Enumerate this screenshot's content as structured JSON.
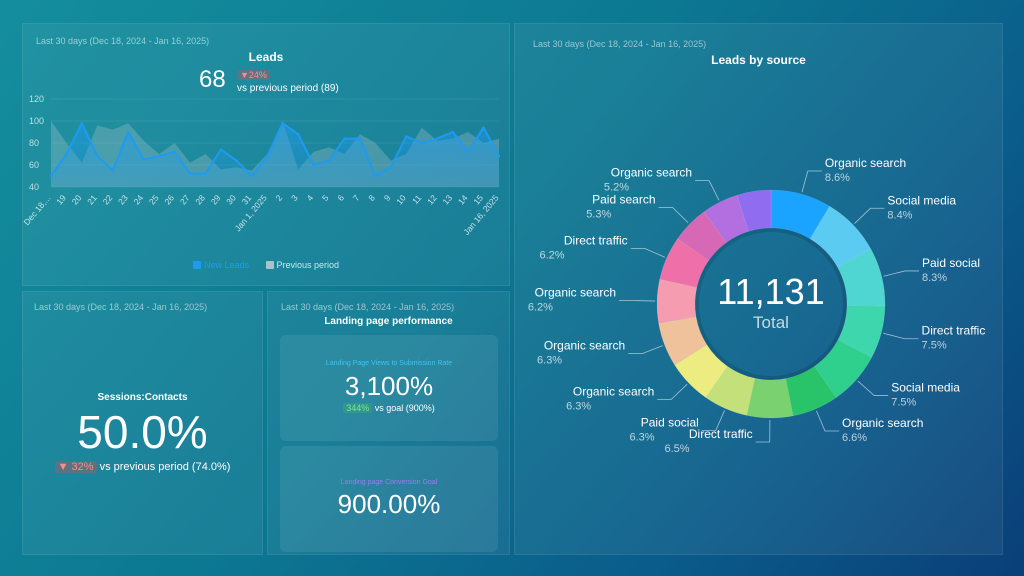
{
  "leads": {
    "period": "Last 30 days (Dec 18, 2024 - Jan 16, 2025)",
    "title": "Leads",
    "value": "68",
    "delta": "▼24%",
    "compare": "vs previous period (89)",
    "legend_new": "New Leads",
    "legend_prev": "Previous period"
  },
  "sessions": {
    "period": "Last 30 days (Dec 18, 2024 - Jan 16, 2025)",
    "title": "Sessions:Contacts",
    "value": "50.0%",
    "delta": "▼ 32%",
    "compare": "vs previous period (74.0%)"
  },
  "landing": {
    "period": "Last 30 days (Dec 18, 2024 - Jan 16, 2025)",
    "title": "Landing page performance",
    "tile1_label": "Landing Page Views to Submission Rate",
    "tile1_value": "3,100%",
    "tile1_delta": "344%",
    "tile1_compare": "vs goal (900%)",
    "tile2_label": "Landing page Conversion Goal",
    "tile2_value": "900.00%"
  },
  "source": {
    "period": "Last 30 days (Dec 18, 2024 - Jan 16, 2025)",
    "title": "Leads by source",
    "total_value": "11,131",
    "total_label": "Total"
  },
  "chart_data": [
    {
      "type": "area",
      "title": "Leads",
      "ylim": [
        40,
        120
      ],
      "yticks": [
        40,
        60,
        80,
        100,
        120
      ],
      "categories": [
        "Dec 18,...",
        "19",
        "20",
        "21",
        "22",
        "23",
        "24",
        "25",
        "26",
        "27",
        "28",
        "29",
        "30",
        "31",
        "Jan 1, 2025",
        "2",
        "3",
        "4",
        "5",
        "6",
        "7",
        "8",
        "9",
        "10",
        "11",
        "12",
        "13",
        "14",
        "15",
        "Jan 16, 2025"
      ],
      "series": [
        {
          "name": "New Leads",
          "color": "#1e9bf0",
          "values": [
            50,
            70,
            98,
            68,
            55,
            90,
            65,
            68,
            72,
            52,
            52,
            74,
            64,
            50,
            68,
            98,
            88,
            60,
            64,
            84,
            84,
            50,
            58,
            86,
            80,
            84,
            90,
            72,
            94,
            68
          ]
        },
        {
          "name": "Previous period",
          "color": "#8fb3bd",
          "values": [
            100,
            80,
            62,
            96,
            92,
            98,
            82,
            70,
            80,
            62,
            70,
            56,
            58,
            55,
            70,
            100,
            56,
            72,
            76,
            70,
            88,
            80,
            64,
            70,
            94,
            82,
            84,
            90,
            80,
            84
          ]
        }
      ]
    },
    {
      "type": "pie",
      "title": "Leads by source",
      "total": 11131,
      "slices": [
        {
          "label": "Organic search",
          "value": 8.6,
          "color": "#1aa3ff"
        },
        {
          "label": "Social media",
          "value": 8.4,
          "color": "#5ccbf2"
        },
        {
          "label": "Paid social",
          "value": 8.3,
          "color": "#4fd6d2"
        },
        {
          "label": "Direct traffic",
          "value": 7.5,
          "color": "#3dd6ad"
        },
        {
          "label": "Social media",
          "value": 7.5,
          "color": "#2fcf8e"
        },
        {
          "label": "Organic search",
          "value": 6.6,
          "color": "#29c46a"
        },
        {
          "label": "Direct traffic",
          "value": 6.5,
          "color": "#7ad170"
        },
        {
          "label": "Paid social",
          "value": 6.3,
          "color": "#c4e07a"
        },
        {
          "label": "Organic search",
          "value": 6.3,
          "color": "#ecec80"
        },
        {
          "label": "Organic search",
          "value": 6.3,
          "color": "#f0c29c"
        },
        {
          "label": "Organic search",
          "value": 6.2,
          "color": "#f59cb0"
        },
        {
          "label": "Direct traffic",
          "value": 6.2,
          "color": "#ef6fa8"
        },
        {
          "label": "Paid search",
          "value": 5.3,
          "color": "#d668b6"
        },
        {
          "label": "Organic search",
          "value": 5.2,
          "color": "#b36ee0"
        },
        {
          "label": "",
          "value": 4.8,
          "color": "#8f6cf0"
        }
      ]
    }
  ]
}
